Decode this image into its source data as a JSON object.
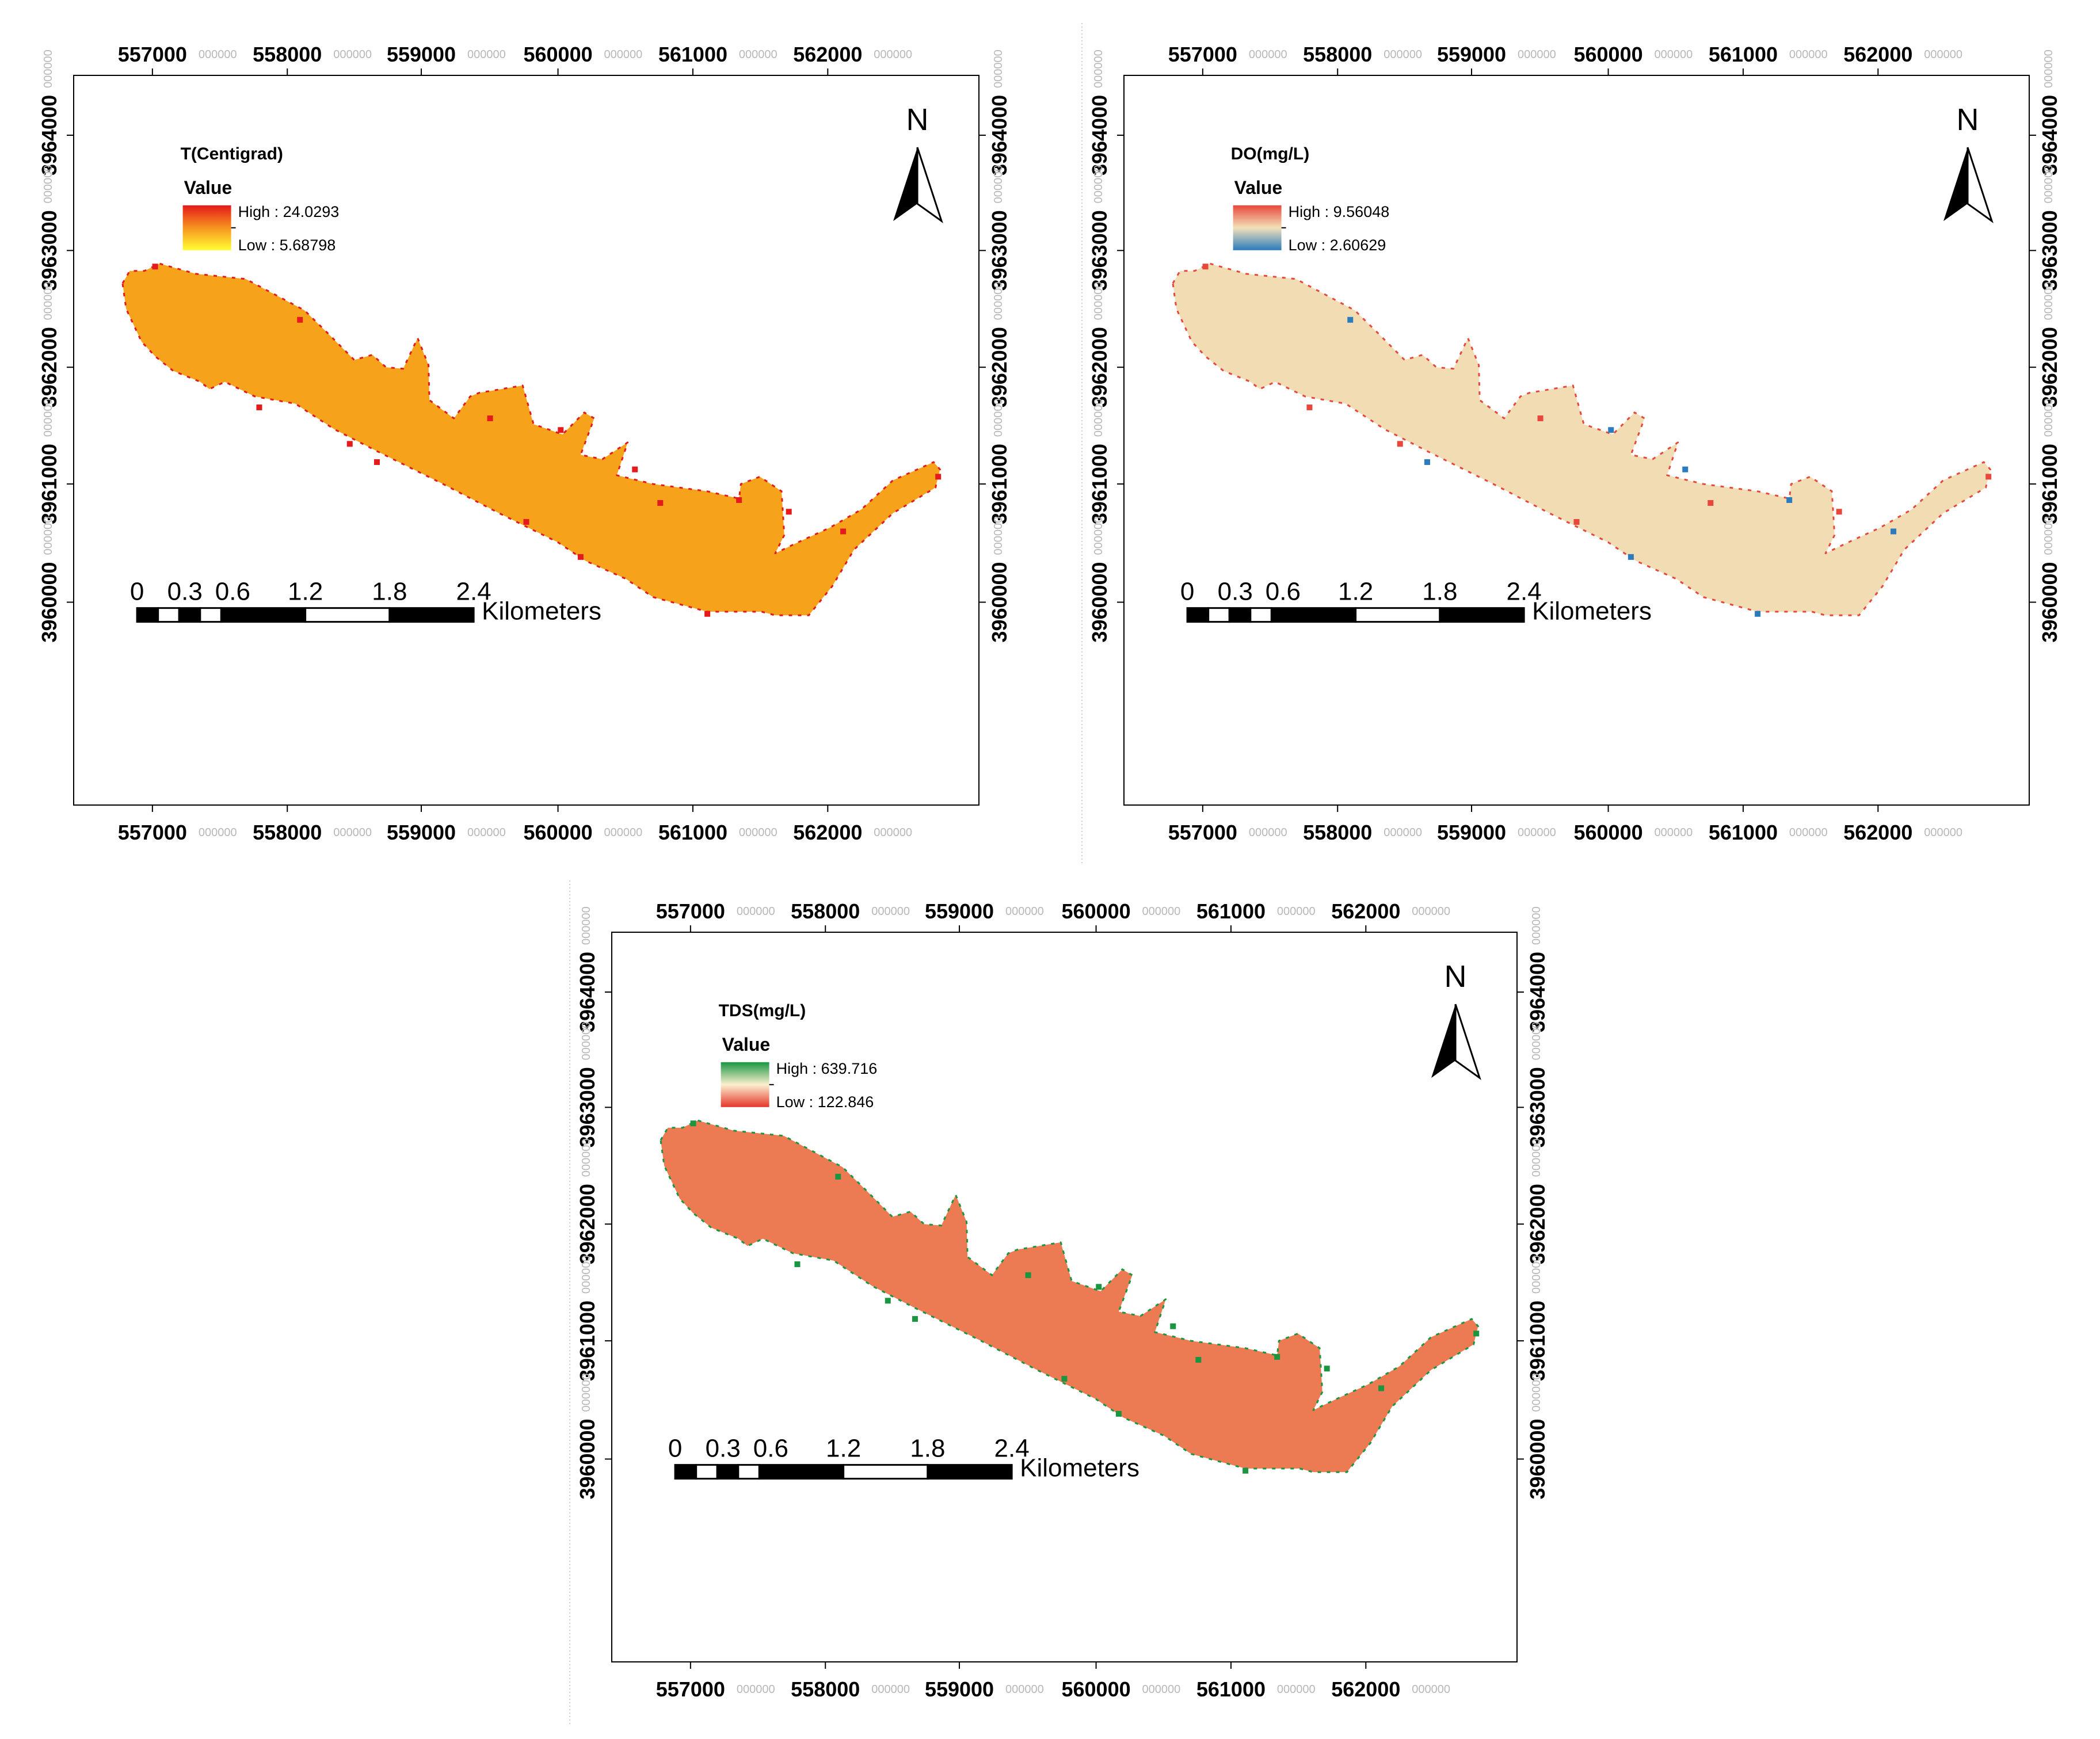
{
  "grid": {
    "x_labels": [
      "557000",
      "558000",
      "559000",
      "560000",
      "561000",
      "562000"
    ],
    "y_labels": [
      "3964000",
      "3963000",
      "3962000",
      "3961000",
      "3960000"
    ],
    "decimal_suffix": "000000"
  },
  "north_arrow": {
    "label": "N"
  },
  "scale_bar": {
    "ticks": [
      "0",
      "0.3",
      "0.6",
      "1.2",
      "1.8",
      "2.4"
    ],
    "unit": "Kilometers"
  },
  "panels": [
    {
      "id": "temperature",
      "legend": {
        "title": "T(Centigrad)",
        "subtitle": "Value",
        "high": "High : 24.0293",
        "low": "Low : 5.68798",
        "gradient": [
          "#e41a1c",
          "#f7931e",
          "#ffff33"
        ]
      },
      "fill": "#f7a21b",
      "edge_colors": [
        "#e41a1c"
      ]
    },
    {
      "id": "dissolved-oxygen",
      "legend": {
        "title": "DO(mg/L)",
        "subtitle": "Value",
        "high": "High : 9.56048",
        "low": "Low : 2.60629",
        "gradient": [
          "#e8473b",
          "#f3e1b9",
          "#2b7bbd"
        ]
      },
      "fill": "#f2dcb4",
      "edge_colors": [
        "#e8473b",
        "#2b7bbd"
      ]
    },
    {
      "id": "total-dissolved-solids",
      "legend": {
        "title": "TDS(mg/L)",
        "subtitle": "Value",
        "high": "High : 639.716",
        "low": "Low : 122.846",
        "gradient": [
          "#1a9641",
          "#fbf0d0",
          "#e5362a"
        ]
      },
      "fill": "#ec7a52",
      "edge_colors": [
        "#1a9641"
      ]
    }
  ]
}
